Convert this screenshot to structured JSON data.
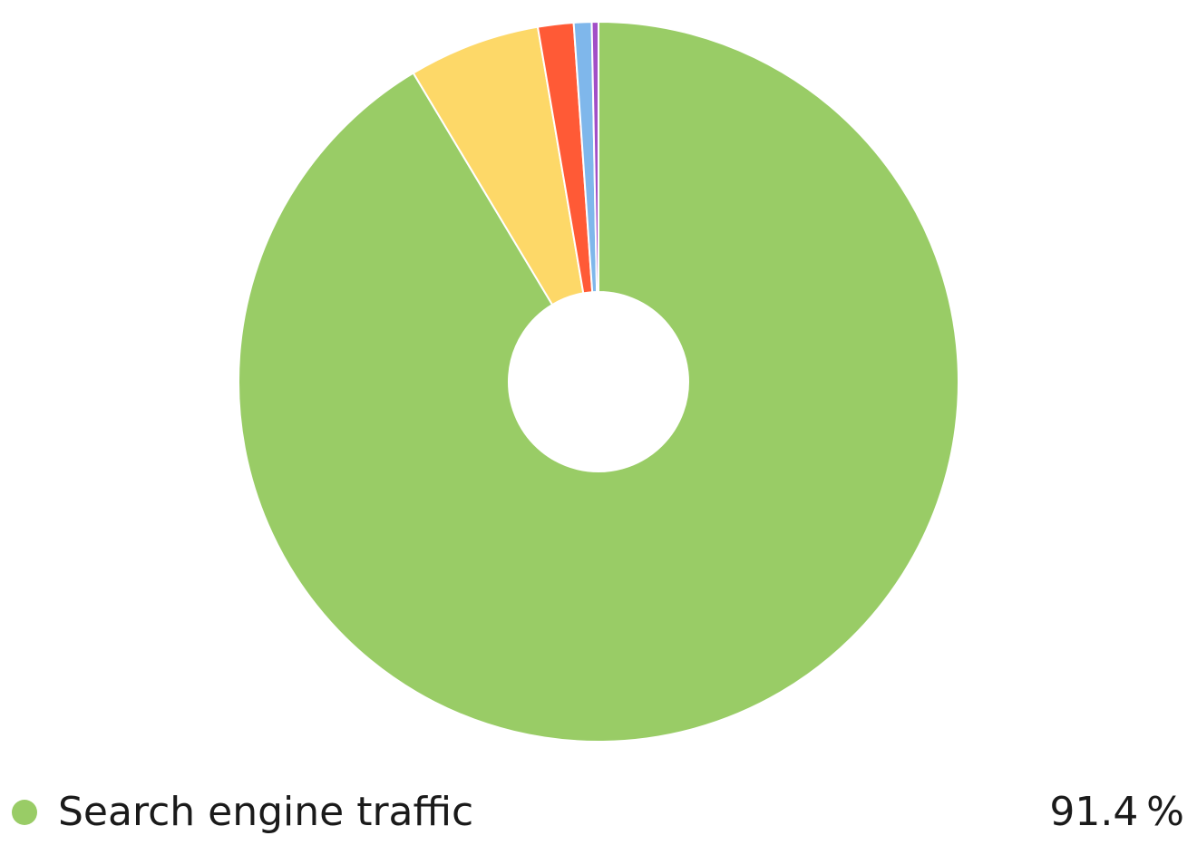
{
  "chart_data": {
    "type": "pie",
    "donut": true,
    "slices": [
      {
        "value": 91.4,
        "color": "#99cc66"
      },
      {
        "value": 5.9,
        "color": "#fdd868"
      },
      {
        "value": 1.6,
        "color": "#ff5a36"
      },
      {
        "value": 0.8,
        "color": "#7fb7eb"
      },
      {
        "value": 0.3,
        "color": "#a24fc7"
      }
    ],
    "legend": {
      "label": "Search engine traffic",
      "value_text": "91.4 %",
      "color": "#99cc66"
    }
  }
}
